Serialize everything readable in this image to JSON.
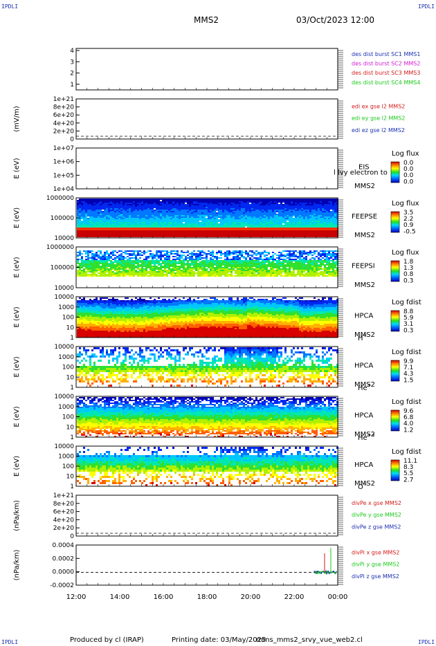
{
  "corner_label": "IPDLI",
  "header": {
    "spacecraft": "MMS2",
    "datetime": "03/Oct/2023 12:00"
  },
  "footer": {
    "producer": "Produced by cl (IRAP)",
    "printing_date": "Printing date: 03/May/2025",
    "program": "mms_mms2_srvy_vue_web2.cl"
  },
  "colors": {
    "mms1": "#1a2fb0",
    "mms2": "#d41ad4",
    "mms3": "#d41a1a",
    "mms4": "#1ac81a",
    "x_comp": "#d41a1a",
    "y_comp": "#1ac81a",
    "z_comp": "#1a2fb0"
  },
  "chart_data": [
    {
      "id": "burst",
      "type": "line",
      "yticks": [
        "1",
        "2",
        "3",
        "4"
      ],
      "legend": [
        {
          "label": "des dist burst SC1 MMS1",
          "color": "#1a2fb0"
        },
        {
          "label": "des dist burst SC2 MMS2",
          "color": "#d41ad4"
        },
        {
          "label": "des dist burst SC3 MMS3",
          "color": "#d41a1a"
        },
        {
          "label": "des dist burst SC4 MMS4",
          "color": "#1ac81a"
        }
      ]
    },
    {
      "id": "edi",
      "type": "line",
      "ylabel": "(mV/m)",
      "yticks": [
        "0",
        "2e+20",
        "4e+20",
        "6e+20",
        "8e+20",
        "1e+21"
      ],
      "legend": [
        {
          "label": "edi ex gse l2 MMS2",
          "color": "#d41a1a"
        },
        {
          "label": "edi ey gse l2 MMS2",
          "color": "#1ac81a"
        },
        {
          "label": "edi ez gse l2 MMS2",
          "color": "#1a2fb0"
        }
      ]
    },
    {
      "id": "eis",
      "type": "heatmap",
      "ylabel": "E (eV)",
      "yticks": [
        "1e+04",
        "1e+05",
        "1e+06",
        "1e+07"
      ],
      "labels": [
        "EIS",
        "MMS2"
      ],
      "overlap_text": "l lvy electron to",
      "cbar": {
        "title": "Log flux",
        "ticks": [
          "0.0",
          "0.0",
          "0.0",
          "0.0"
        ]
      }
    },
    {
      "id": "feepse",
      "type": "heatmap",
      "ylabel": "E (eV)",
      "yticks": [
        "10000",
        "100000",
        "1000000"
      ],
      "labels": [
        "FEEPSE",
        "MMS2"
      ],
      "cbar": {
        "title": "Log flux",
        "ticks": [
          "3.5",
          "2.2",
          "0.9",
          "-0.5"
        ]
      }
    },
    {
      "id": "feepsi",
      "type": "heatmap",
      "ylabel": "E (eV)",
      "yticks": [
        "10000",
        "100000",
        "1000000"
      ],
      "labels": [
        "FEEPSI",
        "MMS2"
      ],
      "cbar": {
        "title": "Log flux",
        "ticks": [
          "1.8",
          "1.3",
          "0.8",
          "0.3"
        ]
      }
    },
    {
      "id": "hpca_h",
      "type": "heatmap",
      "ylabel": "E (eV)",
      "yticks": [
        "1",
        "10",
        "100",
        "1000",
        "10000"
      ],
      "labels": [
        "HPCA",
        "MMS2"
      ],
      "species": "H",
      "charge": "+",
      "cbar": {
        "title": "Log fdist",
        "ticks": [
          "8.8",
          "5.9",
          "3.1",
          "0.3"
        ]
      }
    },
    {
      "id": "hpca_he",
      "type": "heatmap",
      "ylabel": "E (eV)",
      "yticks": [
        "1",
        "10",
        "100",
        "1000",
        "10000"
      ],
      "labels": [
        "HPCA",
        "MMS2"
      ],
      "species": "He",
      "charge": "+",
      "cbar": {
        "title": "Log fdist",
        "ticks": [
          "9.9",
          "7.1",
          "4.3",
          "1.5"
        ]
      }
    },
    {
      "id": "hpca_hepp",
      "type": "heatmap",
      "ylabel": "E (eV)",
      "yticks": [
        "1",
        "10",
        "100",
        "1000",
        "10000"
      ],
      "labels": [
        "HPCA",
        "MMS2"
      ],
      "species": "He",
      "charge": "++",
      "cbar": {
        "title": "Log fdist",
        "ticks": [
          "9.6",
          "6.8",
          "4.0",
          "1.2"
        ]
      }
    },
    {
      "id": "hpca_o",
      "type": "heatmap",
      "ylabel": "E (eV)",
      "yticks": [
        "1",
        "10",
        "100",
        "1000",
        "10000"
      ],
      "labels": [
        "HPCA",
        "MMS2"
      ],
      "species": "O",
      "charge": "+",
      "cbar": {
        "title": "Log fdist",
        "ticks": [
          "11.1",
          "8.3",
          "5.5",
          "2.7"
        ]
      }
    },
    {
      "id": "divpe",
      "type": "line",
      "ylabel": "(nPa/km)",
      "yticks": [
        "0",
        "2e+20",
        "4e+20",
        "6e+20",
        "8e+20",
        "1e+21"
      ],
      "legend": [
        {
          "label": "divPe x gse MMS2",
          "color": "#d41a1a"
        },
        {
          "label": "divPe y gse MMS2",
          "color": "#1ac81a"
        },
        {
          "label": "divPe z gse MMS2",
          "color": "#1a2fb0"
        }
      ]
    },
    {
      "id": "divpi",
      "type": "line",
      "ylabel": "(nPa/km)",
      "yticks": [
        "-0.0002",
        "0.0000",
        "0.0002",
        "0.0004"
      ],
      "legend": [
        {
          "label": "divPi x gse MMS2",
          "color": "#d41a1a"
        },
        {
          "label": "divPi y gse MMS2",
          "color": "#1ac81a"
        },
        {
          "label": "divPi z gse MMS2",
          "color": "#1a2fb0"
        }
      ]
    }
  ],
  "x_axis": {
    "ticks": [
      "12:00",
      "14:00",
      "16:00",
      "18:00",
      "20:00",
      "22:00",
      "00:00"
    ]
  }
}
